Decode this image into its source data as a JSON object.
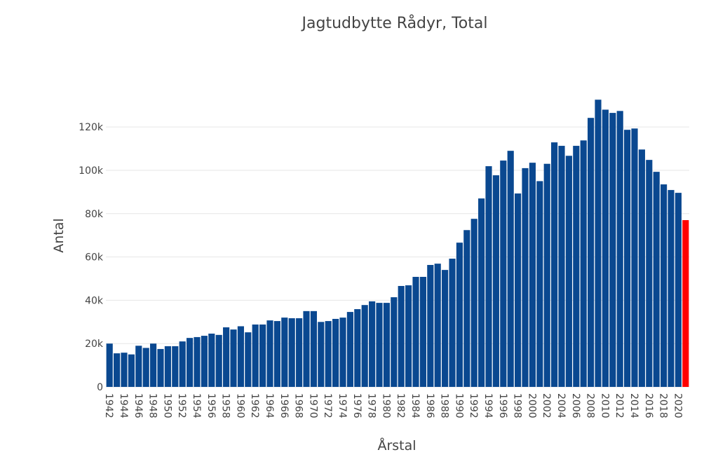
{
  "chart_data": {
    "type": "bar",
    "title": "Jagtudbytte Rådyr, Total",
    "x_label": "Årstal",
    "y_label": "Antal",
    "categories": [
      "1942",
      null,
      "1944",
      null,
      "1946",
      null,
      "1948",
      null,
      "1950",
      null,
      "1952",
      null,
      "1954",
      null,
      "1956",
      null,
      "1958",
      null,
      "1960",
      null,
      "1962",
      null,
      "1964",
      null,
      "1966",
      null,
      "1968",
      null,
      "1970",
      null,
      "1972",
      null,
      "1974",
      null,
      "1976",
      null,
      "1978",
      null,
      "1980",
      null,
      "1982",
      null,
      "1984",
      null,
      "1986",
      null,
      "1988",
      null,
      "1990",
      null,
      "1992",
      null,
      "1994",
      null,
      "1996",
      null,
      "1998",
      null,
      "2000",
      null,
      "2002",
      null,
      "2004",
      null,
      "2006",
      null,
      "2008",
      null,
      "2010",
      null,
      "2012",
      null,
      "2014",
      null,
      "2016",
      null,
      "2018",
      null,
      "2020",
      null
    ],
    "values": [
      20000,
      15500,
      15800,
      15000,
      19000,
      18000,
      20000,
      17500,
      18800,
      18800,
      21000,
      22600,
      23000,
      23600,
      24600,
      24000,
      27500,
      26500,
      28000,
      25200,
      28800,
      28800,
      30700,
      30400,
      32000,
      31700,
      31700,
      35000,
      35000,
      30000,
      30400,
      31400,
      32000,
      34600,
      35900,
      37800,
      39500,
      38800,
      38800,
      41400,
      46600,
      46900,
      50800,
      50800,
      56300,
      56900,
      54000,
      59200,
      66600,
      72400,
      77600,
      87000,
      101900,
      97700,
      104500,
      109000,
      89300,
      101000,
      103500,
      95000,
      103000,
      112900,
      111300,
      106700,
      111300,
      113800,
      124200,
      132600,
      128000,
      126500,
      127400,
      118700,
      119300,
      109600,
      104800,
      99300,
      93500,
      90900,
      89600,
      77000
    ],
    "colors": [
      "#0a4890",
      "#0a4890",
      "#0a4890",
      "#0a4890",
      "#0a4890",
      "#0a4890",
      "#0a4890",
      "#0a4890",
      "#0a4890",
      "#0a4890",
      "#0a4890",
      "#0a4890",
      "#0a4890",
      "#0a4890",
      "#0a4890",
      "#0a4890",
      "#0a4890",
      "#0a4890",
      "#0a4890",
      "#0a4890",
      "#0a4890",
      "#0a4890",
      "#0a4890",
      "#0a4890",
      "#0a4890",
      "#0a4890",
      "#0a4890",
      "#0a4890",
      "#0a4890",
      "#0a4890",
      "#0a4890",
      "#0a4890",
      "#0a4890",
      "#0a4890",
      "#0a4890",
      "#0a4890",
      "#0a4890",
      "#0a4890",
      "#0a4890",
      "#0a4890",
      "#0a4890",
      "#0a4890",
      "#0a4890",
      "#0a4890",
      "#0a4890",
      "#0a4890",
      "#0a4890",
      "#0a4890",
      "#0a4890",
      "#0a4890",
      "#0a4890",
      "#0a4890",
      "#0a4890",
      "#0a4890",
      "#0a4890",
      "#0a4890",
      "#0a4890",
      "#0a4890",
      "#0a4890",
      "#0a4890",
      "#0a4890",
      "#0a4890",
      "#0a4890",
      "#0a4890",
      "#0a4890",
      "#0a4890",
      "#0a4890",
      "#0a4890",
      "#0a4890",
      "#0a4890",
      "#0a4890",
      "#0a4890",
      "#0a4890",
      "#0a4890",
      "#0a4890",
      "#0a4890",
      "#0a4890",
      "#0a4890",
      "#0a4890",
      "#ff0000"
    ],
    "ylim": [
      0,
      133000
    ],
    "yticks": [
      0,
      {
        "value": 20000,
        "label": "20k"
      },
      {
        "value": 40000,
        "label": "40k"
      },
      {
        "value": 60000,
        "label": "60k"
      },
      {
        "value": 80000,
        "label": "80k"
      },
      {
        "value": 100000,
        "label": "100k"
      },
      {
        "value": 120000,
        "label": "120k"
      }
    ],
    "grid": true
  }
}
